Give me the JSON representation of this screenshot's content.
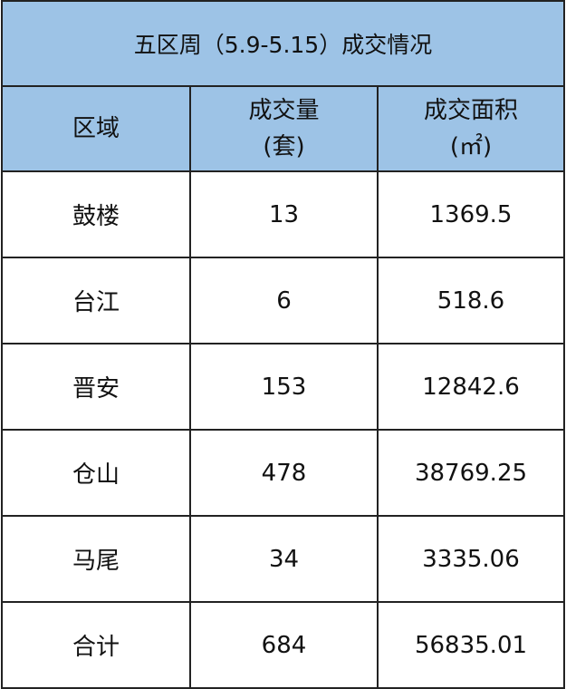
{
  "title": "五区周（5.9-5.15）成交情况",
  "header_bg": "#9dc3e6",
  "columns": {
    "region": "区域",
    "volume_line1": "成交量",
    "volume_line2": "(套)",
    "area_line1": "成交面积",
    "area_line2": "(㎡)"
  },
  "rows": [
    {
      "region": "鼓楼",
      "volume": "13",
      "area": "1369.5"
    },
    {
      "region": "台江",
      "volume": "6",
      "area": "518.6"
    },
    {
      "region": "晋安",
      "volume": "153",
      "area": "12842.6"
    },
    {
      "region": "仓山",
      "volume": "478",
      "area": "38769.25"
    },
    {
      "region": "马尾",
      "volume": "34",
      "area": "3335.06"
    },
    {
      "region": "合计",
      "volume": "684",
      "area": "56835.01"
    }
  ]
}
